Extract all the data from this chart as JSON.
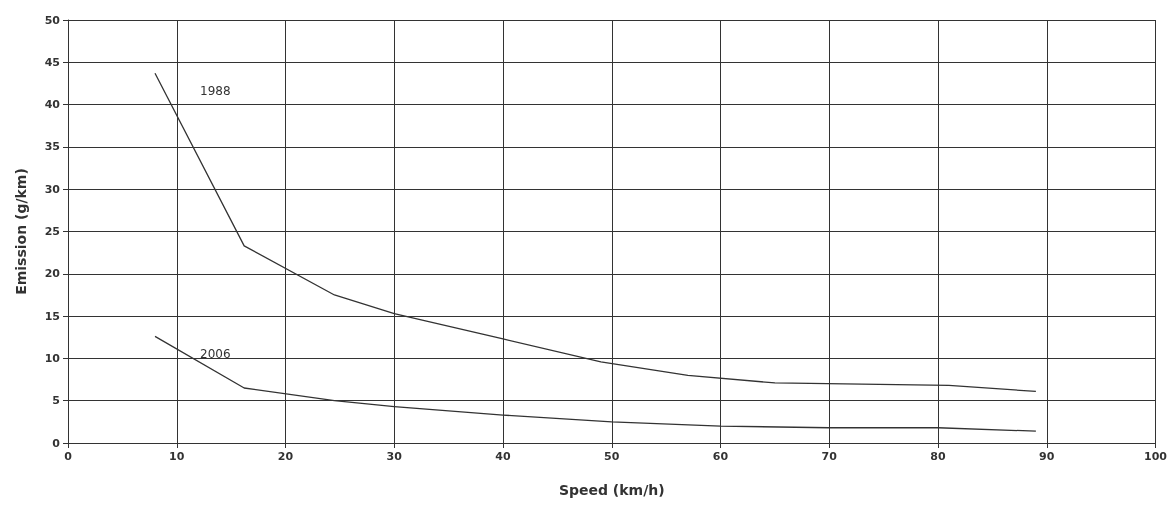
{
  "chart_data": {
    "type": "line",
    "xlabel": "Speed (km/h)",
    "ylabel": "Emission (g/km)",
    "xlim": [
      0,
      100
    ],
    "xticks": [
      0,
      10,
      20,
      30,
      40,
      50,
      60,
      70,
      80,
      90,
      100
    ],
    "ylim": [
      0,
      50
    ],
    "yticks": [
      0,
      5,
      10,
      15,
      20,
      25,
      30,
      35,
      40,
      45,
      50
    ],
    "grid": true,
    "marker": "none",
    "line_style": "solid",
    "legend": false,
    "series": [
      {
        "name": "1988",
        "color": "#333333",
        "x": [
          8,
          16.2,
          24.5,
          30,
          40,
          49,
          57,
          65,
          81,
          89
        ],
        "values": [
          43.7,
          23.3,
          17.5,
          15.3,
          12.3,
          9.6,
          8,
          7.1,
          6.8,
          6.1
        ]
      },
      {
        "name": "2006",
        "color": "#333333",
        "x": [
          8,
          16.2,
          24.5,
          30,
          40,
          50,
          60,
          70,
          80,
          89
        ],
        "values": [
          12.6,
          6.5,
          5,
          4.3,
          3.3,
          2.5,
          2,
          1.8,
          1.8,
          1.4
        ]
      }
    ]
  }
}
